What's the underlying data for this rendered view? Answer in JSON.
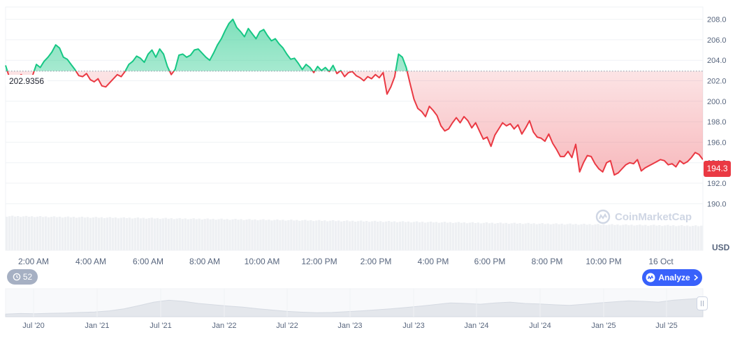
{
  "chart_data": {
    "type": "line",
    "y_axis": {
      "ticks": [
        "208.0",
        "206.0",
        "204.0",
        "202.0",
        "200.0",
        "198.0",
        "196.0",
        "194.0",
        "192.0",
        "190.0"
      ],
      "range": [
        189.0,
        209.2
      ],
      "unit": "USD"
    },
    "x_axis": {
      "ticks": [
        "2:00 AM",
        "4:00 AM",
        "6:00 AM",
        "8:00 AM",
        "10:00 AM",
        "12:00 PM",
        "2:00 PM",
        "4:00 PM",
        "6:00 PM",
        "8:00 PM",
        "10:00 PM",
        "16 Oct"
      ]
    },
    "reference_value": 202.9356,
    "reference_label": "202.9356",
    "current_value": 194.3,
    "current_label": "194.3",
    "colors": {
      "above": "#16c784",
      "below": "#ea3943",
      "current_badge": "#ea3943"
    },
    "series": [
      {
        "values": [
          203.5,
          202.3,
          202.5,
          202.1,
          202.6,
          202.3,
          201.8,
          202.5,
          203.6,
          203.3,
          203.9,
          204.3,
          204.8,
          205.5,
          205.2,
          204.3,
          204.1,
          203.6,
          203.1,
          202.5,
          202.4,
          202.7,
          202.1,
          201.9,
          202.2,
          201.5,
          201.4,
          201.8,
          202.2,
          202.6,
          202.4,
          202.9,
          203.6,
          203.9,
          204.4,
          204.2,
          203.8,
          204.6,
          205.0,
          204.3,
          205.1,
          204.6,
          203.4,
          202.6,
          203.1,
          204.5,
          204.6,
          204.3,
          204.5,
          205.0,
          205.1,
          204.7,
          204.3,
          204.0,
          204.7,
          205.5,
          206.1,
          206.9,
          207.6,
          208.0,
          207.2,
          206.8,
          206.3,
          207.1,
          206.6,
          206.1,
          206.8,
          207.0,
          206.4,
          205.9,
          206.1,
          205.6,
          205.2,
          204.6,
          204.1,
          204.2,
          203.7,
          203.1,
          203.6,
          203.3,
          202.8,
          203.4,
          203.0,
          203.3,
          202.9,
          203.5,
          202.7,
          203.0,
          202.4,
          202.8,
          202.9,
          202.5,
          202.3,
          202.0,
          202.4,
          202.2,
          202.6,
          202.3,
          202.8,
          200.7,
          201.4,
          202.4,
          204.6,
          204.3,
          203.3,
          201.7,
          200.2,
          199.3,
          199.0,
          198.5,
          199.5,
          199.1,
          198.6,
          197.6,
          197.1,
          197.3,
          197.9,
          198.4,
          197.9,
          198.5,
          198.1,
          197.4,
          197.9,
          197.1,
          196.3,
          196.5,
          195.6,
          196.7,
          197.3,
          197.9,
          197.6,
          197.8,
          197.3,
          197.7,
          196.8,
          197.4,
          198.1,
          197.0,
          196.5,
          196.4,
          196.1,
          196.8,
          195.9,
          195.3,
          194.6,
          194.6,
          195.1,
          194.5,
          195.8,
          193.1,
          194.0,
          194.7,
          194.6,
          193.9,
          193.4,
          193.1,
          194.0,
          194.2,
          192.8,
          193.0,
          193.4,
          193.8,
          194.0,
          193.9,
          194.3,
          193.2,
          193.5,
          193.7,
          193.9,
          194.1,
          194.3,
          194.2,
          193.8,
          193.9,
          193.6,
          194.2,
          193.9,
          194.1,
          194.5,
          195.0,
          194.8,
          194.3
        ]
      }
    ]
  },
  "ui": {
    "reference_label": "202.9356",
    "current_label": "194.3",
    "currency_label": "USD",
    "history_count": "52",
    "analyze_label": "Analyze",
    "watermark_text": "CoinMarketCap"
  },
  "navigator": {
    "labels": [
      "Jul '20",
      "Jan '21",
      "Jul '21",
      "Jan '22",
      "Jul '22",
      "Jan '23",
      "Jul '23",
      "Jan '24",
      "Jul '24",
      "Jan '25",
      "Jul '25"
    ],
    "series": [
      0.1,
      0.12,
      0.11,
      0.13,
      0.14,
      0.16,
      0.18,
      0.22,
      0.3,
      0.42,
      0.55,
      0.62,
      0.58,
      0.5,
      0.45,
      0.4,
      0.36,
      0.3,
      0.25,
      0.2,
      0.17,
      0.15,
      0.16,
      0.19,
      0.22,
      0.26,
      0.3,
      0.35,
      0.4,
      0.46,
      0.52,
      0.5,
      0.47,
      0.52,
      0.55,
      0.5,
      0.48,
      0.45,
      0.43,
      0.47,
      0.52,
      0.56,
      0.6,
      0.58,
      0.55,
      0.62,
      0.66,
      0.7
    ]
  }
}
